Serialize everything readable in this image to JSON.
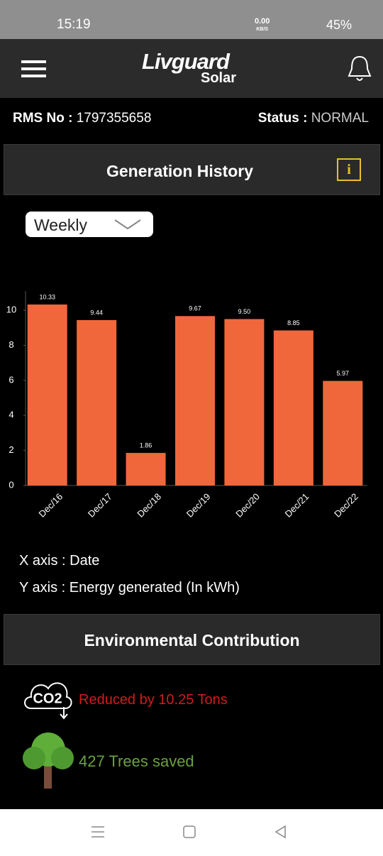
{
  "status_bar": {
    "time": "15:19",
    "net_speed": "0.00",
    "net_unit": "KB/S",
    "battery": "45%"
  },
  "header": {
    "logo_brand": "Livguard",
    "logo_sub": "Solar"
  },
  "info": {
    "rms_label": "RMS No :",
    "rms_value": "1797355658",
    "status_label": "Status :",
    "status_value": "NORMAL"
  },
  "generation": {
    "title": "Generation History",
    "info_icon": "i",
    "period": "Weekly"
  },
  "chart_data": {
    "type": "bar",
    "categories": [
      "Dec/16",
      "Dec/17",
      "Dec/18",
      "Dec/19",
      "Dec/20",
      "Dec/21",
      "Dec/22"
    ],
    "values": [
      10.33,
      9.44,
      1.86,
      9.67,
      9.5,
      8.85,
      5.97
    ],
    "value_labels": [
      "10.33",
      "9.44",
      "1.86",
      "9.67",
      "9.50",
      "8.85",
      "5.97"
    ],
    "color": "#f0673c",
    "ylim": [
      0,
      11.1
    ],
    "yticks": [
      0,
      2,
      4,
      6,
      8,
      10
    ],
    "grid": false
  },
  "axis_notes": {
    "x": "X axis : Date",
    "y": "Y axis : Energy generated (In kWh)"
  },
  "environment": {
    "title": "Environmental Contribution",
    "co2_icon": "CO2",
    "co2_text": "Reduced by 10.25 Tons",
    "trees_text": "427 Trees saved"
  }
}
